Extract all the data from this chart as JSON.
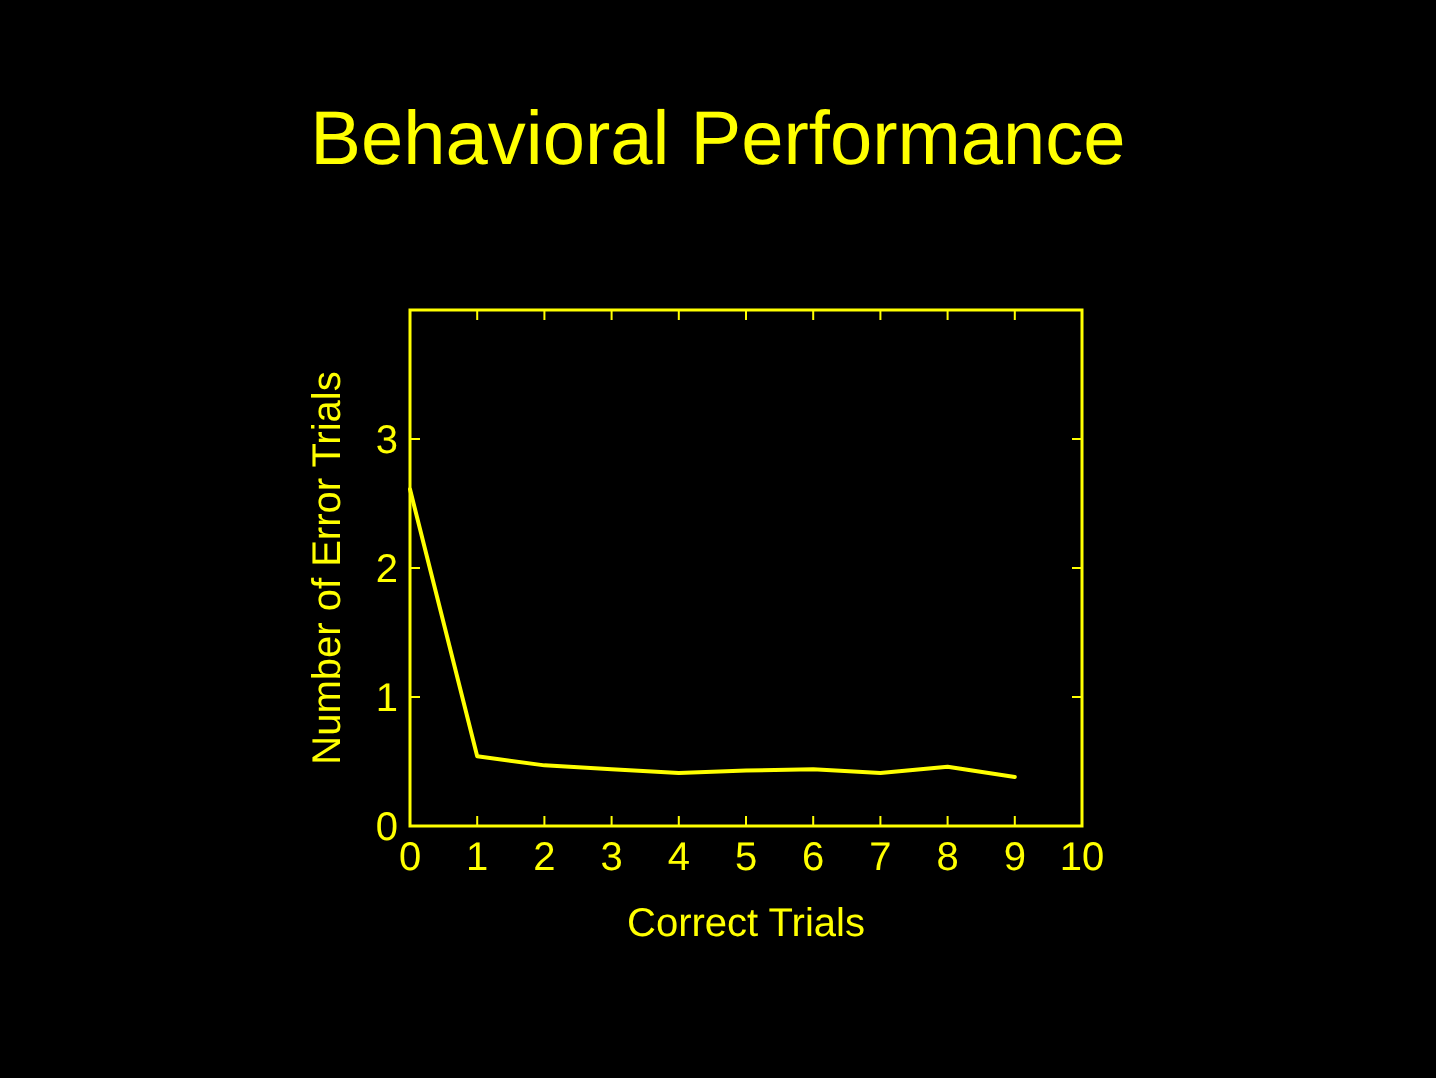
{
  "chart_data": {
    "type": "line",
    "title": "Behavioral Performance",
    "xlabel": "Correct Trials",
    "ylabel": "Number of Error Trials",
    "x": [
      0,
      1,
      2,
      3,
      4,
      5,
      6,
      7,
      8,
      9
    ],
    "series": [
      {
        "color": "#ffff00",
        "values": [
          2.61,
          0.54,
          0.47,
          0.44,
          0.41,
          0.43,
          0.44,
          0.41,
          0.46,
          0.38
        ]
      }
    ],
    "xlim": [
      0,
      10
    ],
    "xticks": [
      0,
      1,
      2,
      3,
      4,
      5,
      6,
      7,
      8,
      9,
      10
    ],
    "ylim": [
      0,
      4
    ],
    "yticks": [
      0,
      1,
      2,
      3
    ],
    "grid": false,
    "marker": "none",
    "line_style": "solid"
  }
}
